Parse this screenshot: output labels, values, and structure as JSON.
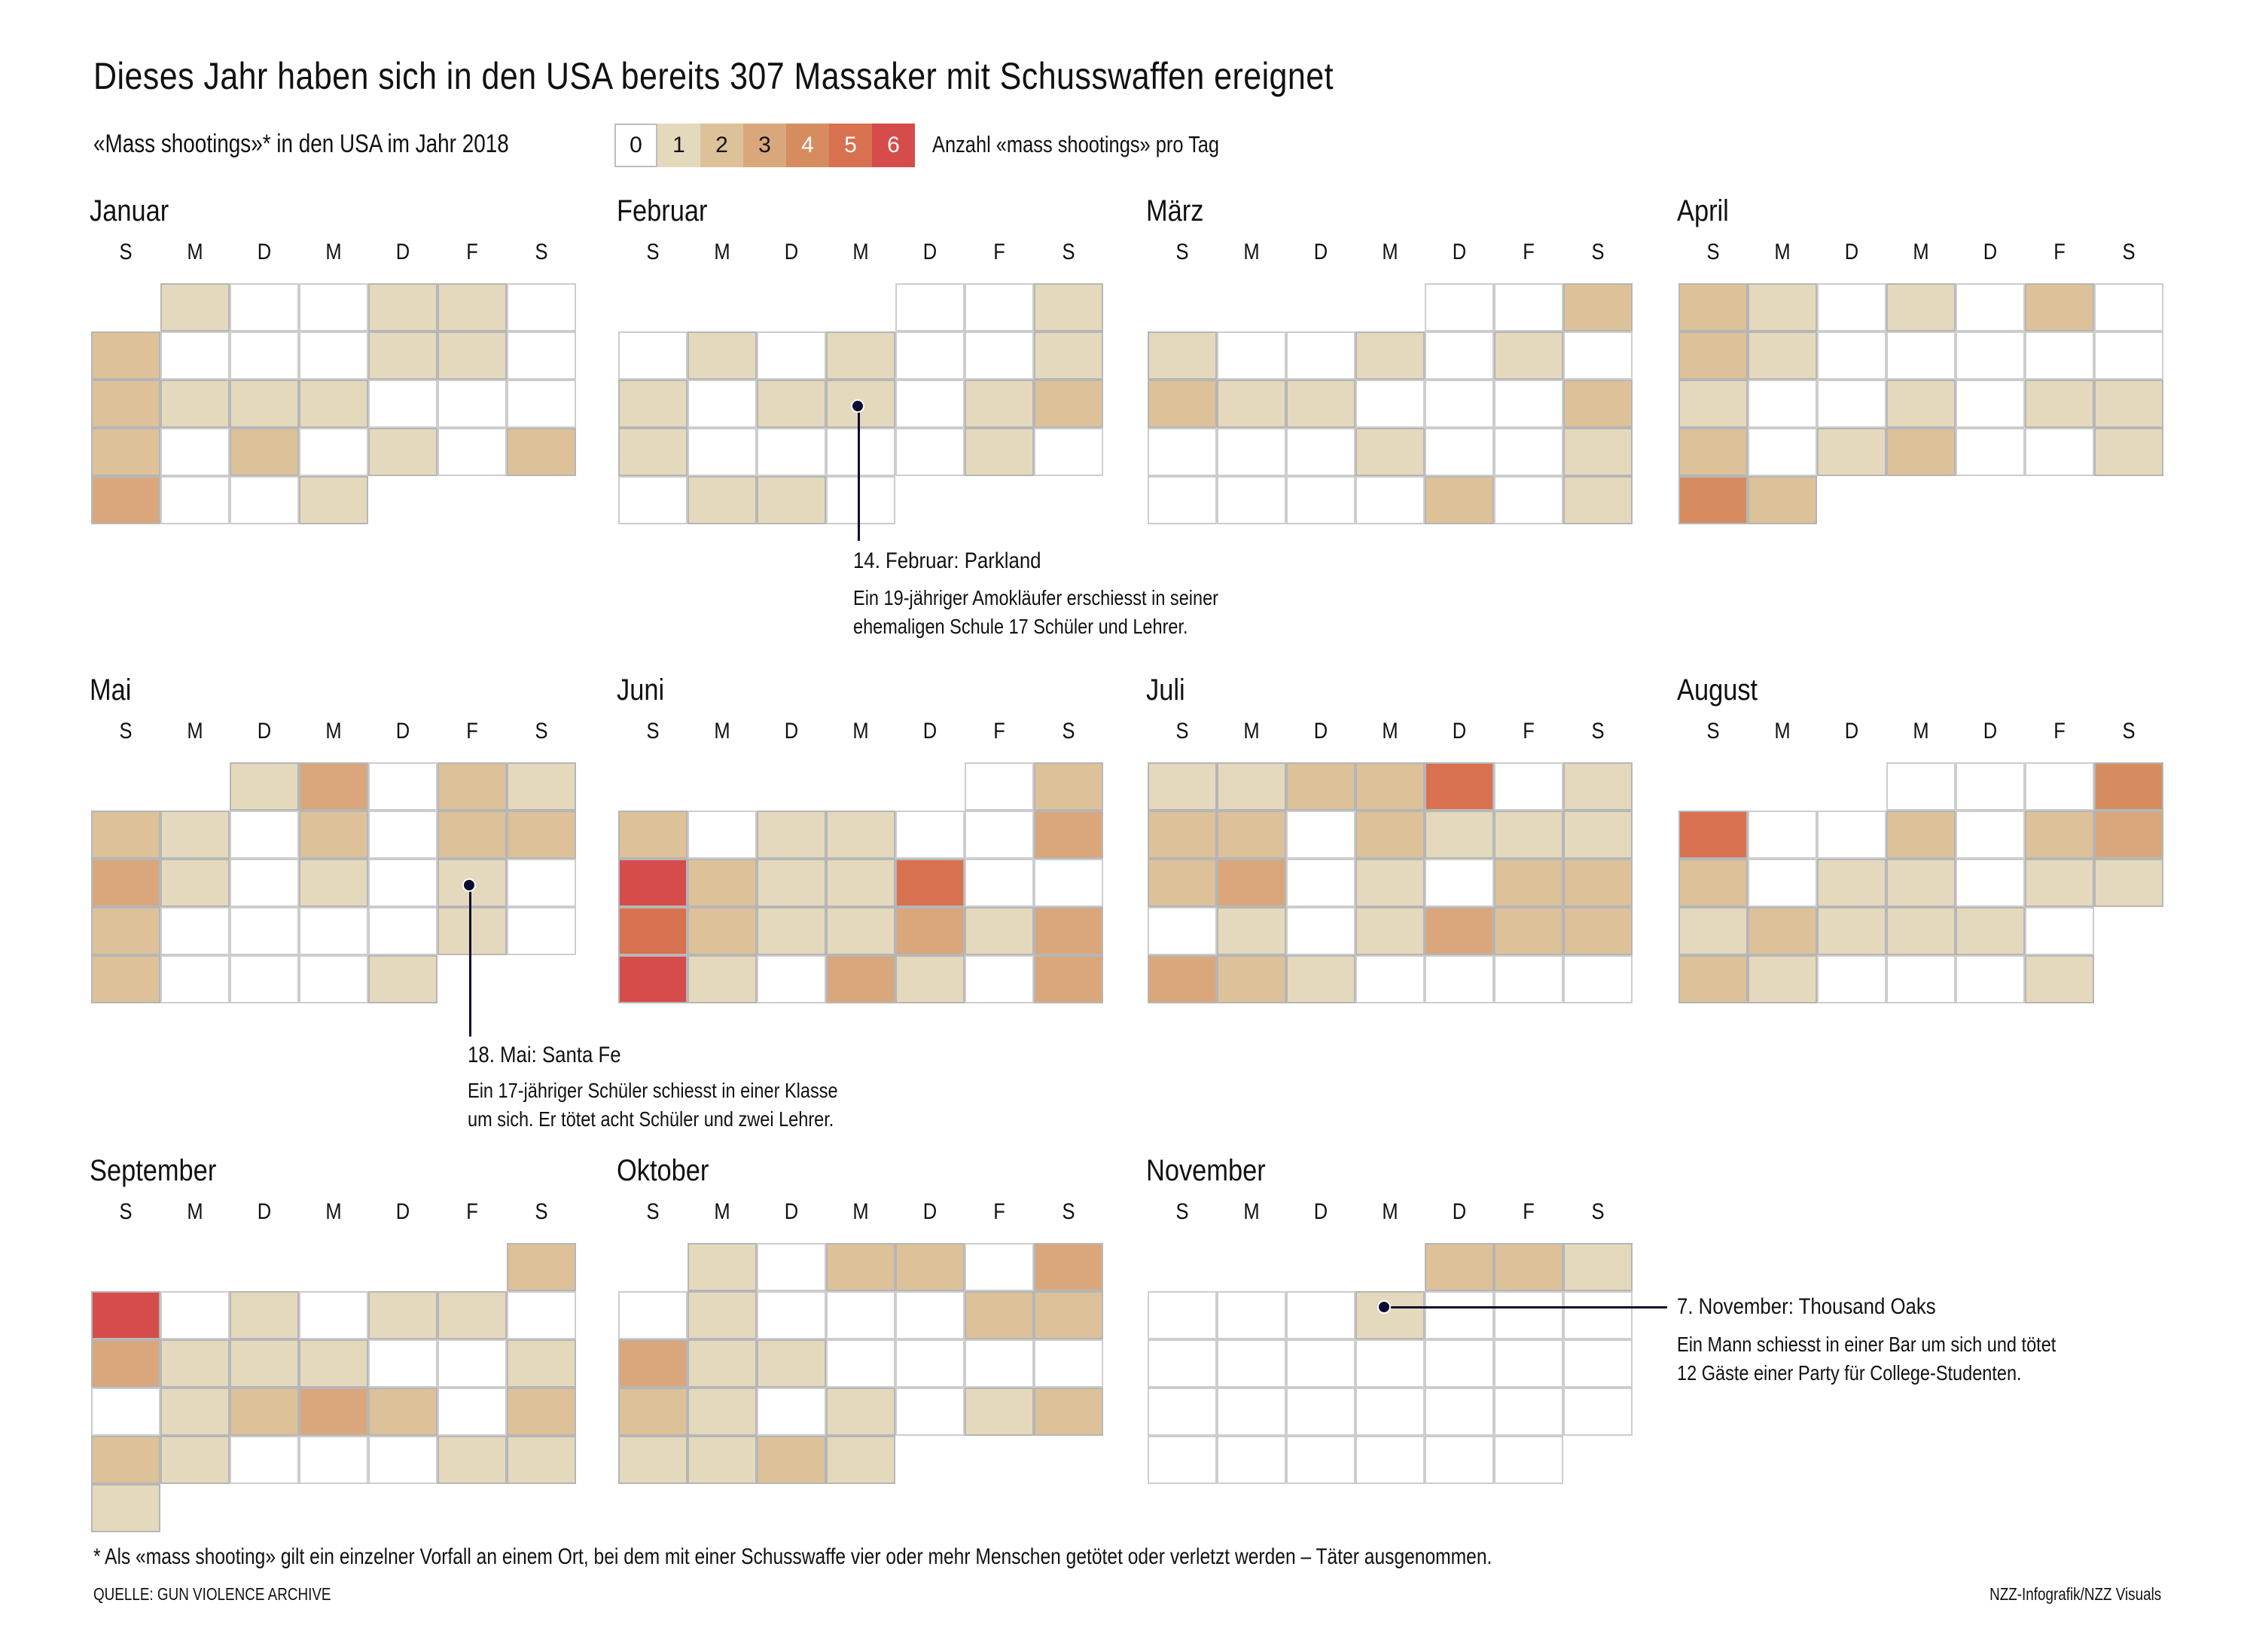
{
  "header": {
    "title": "Dieses Jahr haben sich in den USA bereits 307 Massaker mit Schusswaffen ereignet",
    "subtitle": "«Mass shootings»* in den USA im Jahr 2018",
    "legend_label": "Anzahl «mass shootings» pro Tag"
  },
  "legend": [
    {
      "value": "0",
      "color": "#ffffff",
      "text_color": "#111111"
    },
    {
      "value": "1",
      "color": "#e4d9bd",
      "text_color": "#111111"
    },
    {
      "value": "2",
      "color": "#ddc199",
      "text_color": "#111111"
    },
    {
      "value": "3",
      "color": "#d9a77b",
      "text_color": "#111111"
    },
    {
      "value": "4",
      "color": "#d78c5f",
      "text_color": "#ffffff"
    },
    {
      "value": "5",
      "color": "#d8714f",
      "text_color": "#ffffff"
    },
    {
      "value": "6",
      "color": "#d64c4a",
      "text_color": "#ffffff"
    }
  ],
  "weekdays": [
    "S",
    "M",
    "D",
    "M",
    "D",
    "F",
    "S"
  ],
  "chart_data": {
    "type": "heatmap",
    "title": "Dieses Jahr haben sich in den USA bereits 307 Massaker mit Schusswaffen ereignet",
    "subtitle": "«Mass shootings»* in den USA im Jahr 2018",
    "value_label": "Anzahl «mass shootings» pro Tag",
    "scale": [
      0,
      1,
      2,
      3,
      4,
      5,
      6
    ],
    "months": [
      {
        "name": "Januar",
        "weeks": [
          [
            null,
            1,
            0,
            0,
            1,
            1,
            0
          ],
          [
            2,
            0,
            0,
            0,
            1,
            1,
            0
          ],
          [
            2,
            1,
            1,
            1,
            0,
            0,
            0
          ],
          [
            2,
            0,
            2,
            0,
            1,
            0,
            2
          ],
          [
            3,
            0,
            0,
            1,
            null,
            null,
            null
          ]
        ]
      },
      {
        "name": "Februar",
        "weeks": [
          [
            null,
            null,
            null,
            null,
            0,
            0,
            1
          ],
          [
            0,
            1,
            0,
            1,
            0,
            0,
            1
          ],
          [
            1,
            0,
            1,
            1,
            0,
            1,
            2
          ],
          [
            1,
            0,
            0,
            0,
            0,
            1,
            0
          ],
          [
            0,
            1,
            1,
            0,
            null,
            null,
            null
          ]
        ]
      },
      {
        "name": "März",
        "weeks": [
          [
            null,
            null,
            null,
            null,
            0,
            0,
            2
          ],
          [
            1,
            0,
            0,
            1,
            0,
            1,
            0
          ],
          [
            2,
            1,
            1,
            0,
            0,
            0,
            2
          ],
          [
            0,
            0,
            0,
            1,
            0,
            0,
            1
          ],
          [
            0,
            0,
            0,
            0,
            2,
            0,
            1
          ]
        ]
      },
      {
        "name": "April",
        "weeks": [
          [
            2,
            1,
            0,
            1,
            0,
            2,
            0
          ],
          [
            2,
            1,
            0,
            0,
            0,
            0,
            0
          ],
          [
            1,
            0,
            0,
            1,
            0,
            1,
            1
          ],
          [
            2,
            0,
            1,
            2,
            0,
            0,
            1
          ],
          [
            4,
            2,
            null,
            null,
            null,
            null,
            null
          ]
        ]
      },
      {
        "name": "Mai",
        "weeks": [
          [
            null,
            null,
            1,
            3,
            0,
            2,
            1
          ],
          [
            2,
            1,
            0,
            2,
            0,
            2,
            2
          ],
          [
            3,
            1,
            0,
            1,
            0,
            1,
            0
          ],
          [
            2,
            0,
            0,
            0,
            0,
            1,
            0
          ],
          [
            2,
            0,
            0,
            0,
            1,
            null,
            null
          ]
        ]
      },
      {
        "name": "Juni",
        "weeks": [
          [
            null,
            null,
            null,
            null,
            null,
            0,
            2
          ],
          [
            2,
            0,
            1,
            1,
            0,
            0,
            3
          ],
          [
            6,
            2,
            1,
            1,
            5,
            0,
            0
          ],
          [
            5,
            2,
            1,
            1,
            3,
            1,
            3
          ],
          [
            6,
            1,
            0,
            3,
            1,
            0,
            3
          ]
        ]
      },
      {
        "name": "Juli",
        "weeks": [
          [
            1,
            1,
            2,
            2,
            5,
            0,
            1
          ],
          [
            2,
            2,
            0,
            2,
            1,
            1,
            1
          ],
          [
            2,
            3,
            0,
            1,
            0,
            2,
            2
          ],
          [
            0,
            1,
            0,
            1,
            3,
            2,
            2
          ],
          [
            3,
            2,
            1,
            0,
            0,
            0,
            0
          ]
        ]
      },
      {
        "name": "August",
        "weeks": [
          [
            null,
            null,
            null,
            0,
            0,
            0,
            4
          ],
          [
            5,
            0,
            0,
            2,
            0,
            2,
            3
          ],
          [
            2,
            0,
            1,
            1,
            0,
            1,
            1
          ],
          [
            1,
            2,
            1,
            1,
            1,
            0,
            null
          ],
          [
            2,
            1,
            0,
            0,
            0,
            1,
            null
          ]
        ]
      },
      {
        "name": "September",
        "weeks": [
          [
            null,
            null,
            null,
            null,
            null,
            null,
            2
          ],
          [
            6,
            0,
            1,
            0,
            1,
            1,
            0
          ],
          [
            3,
            1,
            1,
            1,
            0,
            0,
            1
          ],
          [
            0,
            1,
            2,
            3,
            2,
            0,
            2
          ],
          [
            2,
            1,
            0,
            0,
            0,
            1,
            1
          ],
          [
            1,
            null,
            null,
            null,
            null,
            null,
            null
          ]
        ]
      },
      {
        "name": "Oktober",
        "weeks": [
          [
            null,
            1,
            0,
            2,
            2,
            0,
            3
          ],
          [
            0,
            1,
            0,
            0,
            0,
            2,
            2
          ],
          [
            3,
            1,
            1,
            0,
            0,
            0,
            0
          ],
          [
            2,
            1,
            0,
            1,
            0,
            1,
            2
          ],
          [
            1,
            1,
            2,
            1,
            null,
            null,
            null
          ]
        ]
      },
      {
        "name": "November",
        "weeks": [
          [
            null,
            null,
            null,
            null,
            2,
            2,
            1
          ],
          [
            0,
            0,
            0,
            1,
            0,
            0,
            0
          ],
          [
            0,
            0,
            0,
            0,
            0,
            0,
            0
          ],
          [
            0,
            0,
            0,
            0,
            0,
            0,
            0
          ],
          [
            0,
            0,
            0,
            0,
            0,
            0,
            null
          ]
        ]
      }
    ]
  },
  "annotations": [
    {
      "date": "14. Februar",
      "title": "14. Februar: Parkland",
      "lines": [
        "Ein 19-jähriger Amokläufer erschiesst in seiner",
        "ehemaligen Schule 17 Schüler und Lehrer."
      ]
    },
    {
      "date": "18. Mai",
      "title": "18. Mai: Santa Fe",
      "lines": [
        "Ein 17-jähriger Schüler schiesst in einer Klasse",
        "um sich. Er tötet acht Schüler und zwei Lehrer."
      ]
    },
    {
      "date": "7. November",
      "title": "7. November: Thousand Oaks",
      "lines": [
        "Ein Mann schiesst in einer Bar um sich und tötet",
        "12 Gäste einer Party für College-Studenten."
      ]
    }
  ],
  "footer": {
    "footnote": "* Als «mass shooting» gilt ein einzelner Vorfall an einem Ort, bei dem mit einer Schusswaffe vier oder mehr Menschen getötet oder verletzt werden – Täter ausgenommen.",
    "source": "QUELLE: GUN VIOLENCE ARCHIVE",
    "credit": "NZZ-Infografik/NZZ Visuals"
  }
}
